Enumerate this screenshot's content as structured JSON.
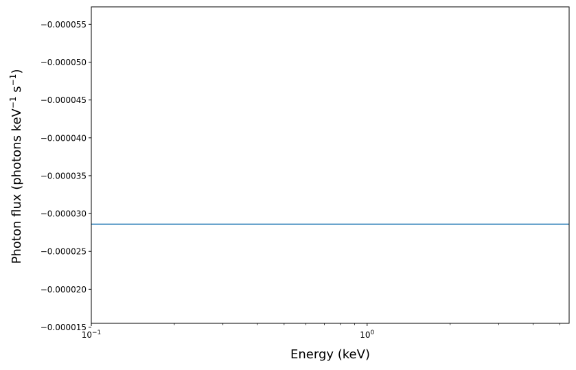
{
  "chart_data": {
    "type": "line",
    "title": "",
    "xlabel": "Energy (keV)",
    "ylabel": {
      "prefix": "Photon flux (photons keV",
      "sup1": "−1",
      "mid": " s",
      "sup2": "−1",
      "suffix": ")"
    },
    "xscale": "log",
    "yscale": "linear",
    "y_inverted": true,
    "xlim": [
      0.1,
      5.4
    ],
    "ylim": [
      -1.55e-05,
      -5.73e-05
    ],
    "x_ticks": [
      {
        "value": 0.1,
        "base": "10",
        "exp": "−1"
      },
      {
        "value": 1,
        "base": "10",
        "exp": "0"
      }
    ],
    "y_ticks": [
      {
        "value": -5.5e-05,
        "label": "−0.000055"
      },
      {
        "value": -5e-05,
        "label": "−0.000050"
      },
      {
        "value": -4.5e-05,
        "label": "−0.000045"
      },
      {
        "value": -4e-05,
        "label": "−0.000040"
      },
      {
        "value": -3.5e-05,
        "label": "−0.000035"
      },
      {
        "value": -3e-05,
        "label": "−0.000030"
      },
      {
        "value": -2.5e-05,
        "label": "−0.000025"
      },
      {
        "value": -2e-05,
        "label": "−0.000020"
      },
      {
        "value": -1.5e-05,
        "label": "−0.000015"
      }
    ],
    "grid": false,
    "series": [
      {
        "color": "#1f77b4",
        "x": [
          0.1,
          5.4
        ],
        "y": [
          -2.86e-05,
          -2.86e-05
        ]
      }
    ]
  }
}
